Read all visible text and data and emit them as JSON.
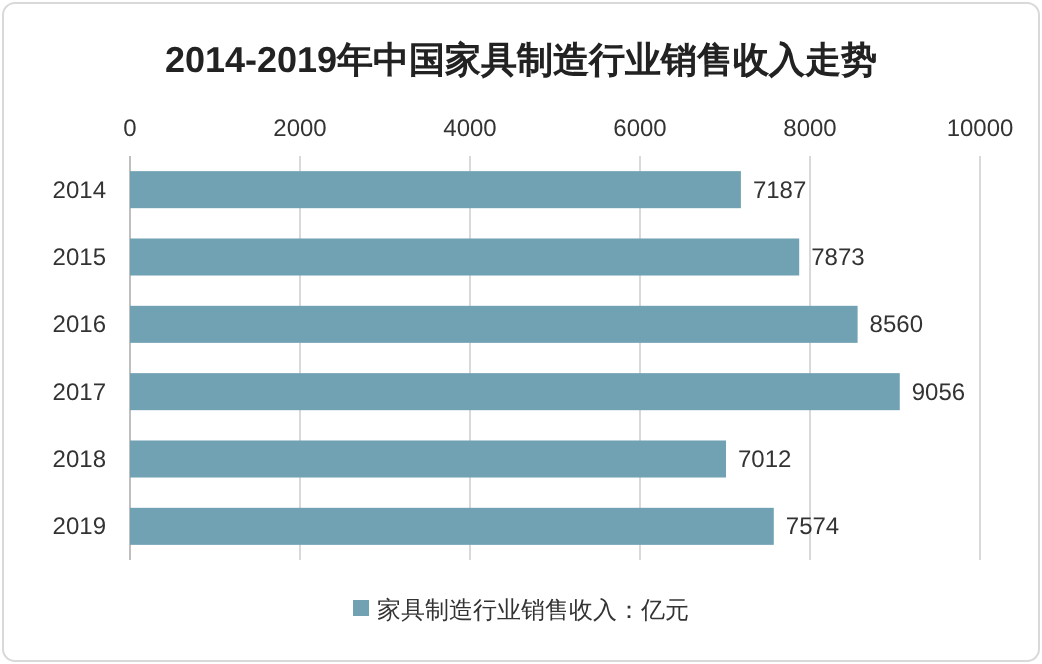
{
  "chart_data": {
    "type": "bar",
    "title": "2014-2019年中国家具制造行业销售收入走势",
    "orientation": "horizontal",
    "categories": [
      "2014",
      "2015",
      "2016",
      "2017",
      "2018",
      "2019"
    ],
    "series": [
      {
        "name": "家具制造行业销售收入：亿元",
        "color": "#71a2b4",
        "values": [
          7187,
          7873,
          8560,
          9056,
          7012,
          7574
        ]
      }
    ],
    "xlim": [
      0,
      10000
    ],
    "xticks": [
      0,
      2000,
      4000,
      6000,
      8000,
      10000
    ],
    "grid": "x",
    "legend": "bottom",
    "data_labels": true
  }
}
